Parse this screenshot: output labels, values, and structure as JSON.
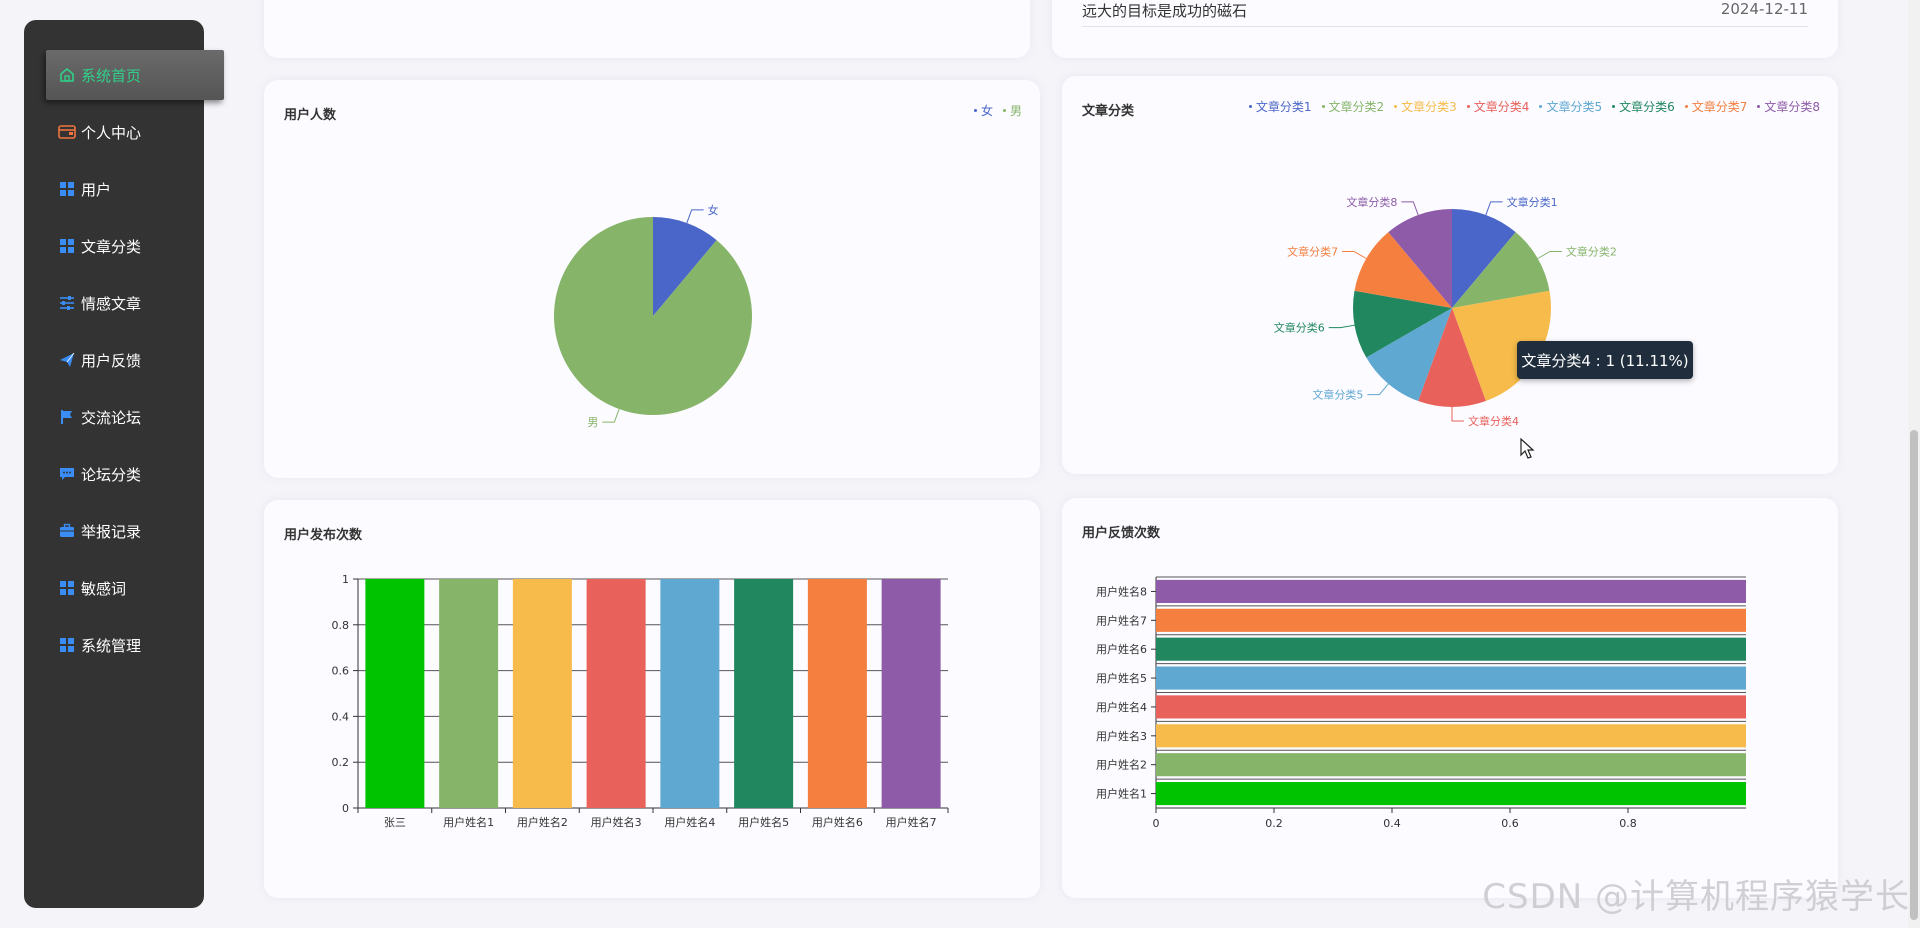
{
  "sidebar": {
    "items": [
      {
        "label": "系统首页",
        "icon": "home-icon",
        "active": true
      },
      {
        "label": "个人中心",
        "icon": "wallet-icon",
        "active": false
      },
      {
        "label": "用户",
        "icon": "grid-icon",
        "active": false
      },
      {
        "label": "文章分类",
        "icon": "grid-icon",
        "active": false
      },
      {
        "label": "情感文章",
        "icon": "sliders-icon",
        "active": false
      },
      {
        "label": "用户反馈",
        "icon": "paper-plane-icon",
        "active": false
      },
      {
        "label": "交流论坛",
        "icon": "flag-icon",
        "active": false
      },
      {
        "label": "论坛分类",
        "icon": "comment-icon",
        "active": false
      },
      {
        "label": "举报记录",
        "icon": "briefcase-icon",
        "active": false
      },
      {
        "label": "敏感词",
        "icon": "grid-icon",
        "active": false
      },
      {
        "label": "系统管理",
        "icon": "grid-icon",
        "active": false
      }
    ]
  },
  "news": {
    "title": "远大的目标是成功的磁石",
    "date": "2024-12-11"
  },
  "tooltip": {
    "text": "文章分类4 : 1 (11.11%)"
  },
  "watermark": "CSDN @计算机程序猿学长",
  "colors": {
    "accent_green": "#2fd18a",
    "palette": [
      "#4a66c8",
      "#86b56a",
      "#f6bb4a",
      "#e8615a",
      "#5fa8d2",
      "#21875f",
      "#f47f3f",
      "#8d5ba8"
    ]
  },
  "chart_data": [
    {
      "id": "user-count",
      "type": "pie",
      "title": "用户人数",
      "legend": [
        "女",
        "男"
      ],
      "labels": [
        "女",
        "男"
      ],
      "values": [
        1,
        8
      ],
      "colors": [
        "#4a66c8",
        "#86b56a"
      ],
      "legend_position": "top-right"
    },
    {
      "id": "article-category",
      "type": "pie",
      "title": "文章分类",
      "legend": [
        "文章分类1",
        "文章分类2",
        "文章分类3",
        "文章分类4",
        "文章分类5",
        "文章分类6",
        "文章分类7",
        "文章分类8"
      ],
      "labels": [
        "文章分类1",
        "文章分类2",
        "文章分类3",
        "文章分类4",
        "文章分类5",
        "文章分类6",
        "文章分类7",
        "文章分类8"
      ],
      "values": [
        1,
        1,
        2,
        1,
        1,
        1,
        1,
        1
      ],
      "colors": [
        "#4a66c8",
        "#86b56a",
        "#f6bb4a",
        "#e8615a",
        "#5fa8d2",
        "#21875f",
        "#f47f3f",
        "#8d5ba8"
      ],
      "legend_position": "top-right"
    },
    {
      "id": "user-post-count",
      "type": "bar",
      "title": "用户发布次数",
      "categories": [
        "张三",
        "用户姓名1",
        "用户姓名2",
        "用户姓名3",
        "用户姓名4",
        "用户姓名5",
        "用户姓名6",
        "用户姓名7"
      ],
      "values": [
        1,
        1,
        1,
        1,
        1,
        1,
        1,
        1
      ],
      "colors": [
        "#00c300",
        "#86b56a",
        "#f6bb4a",
        "#e8615a",
        "#5fa8d2",
        "#21875f",
        "#f47f3f",
        "#8d5ba8"
      ],
      "ylim": [
        0,
        1
      ],
      "yticks": [
        "0",
        "0.2",
        "0.4",
        "0.6",
        "0.8",
        "1"
      ],
      "grid": true
    },
    {
      "id": "user-feedback-count",
      "type": "bar",
      "orientation": "horizontal",
      "title": "用户反馈次数",
      "categories": [
        "用户姓名1",
        "用户姓名2",
        "用户姓名3",
        "用户姓名4",
        "用户姓名5",
        "用户姓名6",
        "用户姓名7",
        "用户姓名8"
      ],
      "values": [
        1,
        1,
        1,
        1,
        1,
        1,
        1,
        1
      ],
      "colors": [
        "#00c300",
        "#86b56a",
        "#f6bb4a",
        "#e8615a",
        "#5fa8d2",
        "#21875f",
        "#f47f3f",
        "#8d5ba8"
      ],
      "xlim": [
        0,
        1
      ],
      "xticks": [
        "0",
        "0.2",
        "0.4",
        "0.6",
        "0.8"
      ],
      "grid": true
    }
  ]
}
